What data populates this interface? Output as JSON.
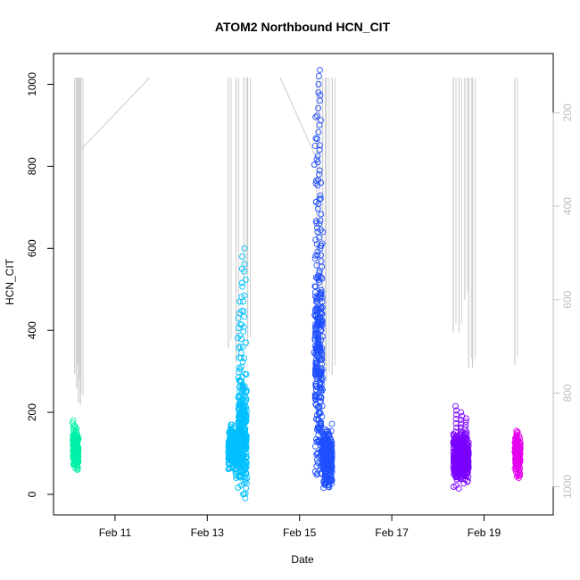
{
  "chart_data": {
    "type": "scatter",
    "title": "ATOM2 Northbound HCN_CIT",
    "xlabel": "Date",
    "ylabel": "HCN_CIT",
    "xlim": [
      "2017-02-09 16:00",
      "2017-02-20 12:00"
    ],
    "ylim": [
      -50,
      1075
    ],
    "x_ticks": [
      {
        "label": "Feb 11",
        "date": "2017-02-11"
      },
      {
        "label": "Feb 13",
        "date": "2017-02-13"
      },
      {
        "label": "Feb 15",
        "date": "2017-02-15"
      },
      {
        "label": "Feb 17",
        "date": "2017-02-17"
      },
      {
        "label": "Feb 19",
        "date": "2017-02-19"
      }
    ],
    "y_ticks": [
      0,
      200,
      400,
      600,
      800,
      1000
    ],
    "y2_ticks": [
      200,
      400,
      600,
      800,
      1000
    ],
    "y2_range_top_to_bottom": [
      125,
      1005
    ],
    "grid": false,
    "legend": "none",
    "series": [
      {
        "color": "#00f0a8",
        "segments": [
          {
            "x_start": "2017-02-10 02:00",
            "x_end": "2017-02-10 05:00",
            "y_min": 55,
            "y_max": 150,
            "y_center": 110,
            "spikes": [
              180,
              165,
              60
            ]
          }
        ]
      },
      {
        "color": "#00bfff",
        "segments": [
          {
            "x_start": "2017-02-13 11:00",
            "x_end": "2017-02-13 16:00",
            "y_min": 60,
            "y_max": 180,
            "y_center": 110,
            "spikes": [
              170,
              40
            ]
          },
          {
            "x_start": "2017-02-13 16:00",
            "x_end": "2017-02-13 20:30",
            "y_min": 0,
            "y_max": 330,
            "y_center": 140,
            "spikes": [
              430,
              470,
              550,
              580,
              600,
              -10
            ]
          }
        ]
      },
      {
        "color": "#1f4fff",
        "segments": [
          {
            "x_start": "2017-02-15 08:00",
            "x_end": "2017-02-15 12:00",
            "y_min": 40,
            "y_max": 700,
            "y_center": 300,
            "spikes": [
              850,
              920,
              980,
              1000,
              1020,
              1035,
              760,
              640
            ]
          },
          {
            "x_start": "2017-02-15 12:00",
            "x_end": "2017-02-15 17:00",
            "y_min": 15,
            "y_max": 180,
            "y_center": 90,
            "spikes": [
              140,
              125
            ]
          }
        ]
      },
      {
        "color": "#7a00ff",
        "segments": [
          {
            "x_start": "2017-02-18 08:00",
            "x_end": "2017-02-18 16:00",
            "y_min": 10,
            "y_max": 150,
            "y_center": 90,
            "spikes": [
              215,
              200,
              185
            ]
          }
        ]
      },
      {
        "color": "#e600f0",
        "segments": [
          {
            "x_start": "2017-02-19 16:00",
            "x_end": "2017-02-19 19:00",
            "y_min": 35,
            "y_max": 155,
            "y_center": 100,
            "spikes": [
              155,
              40
            ]
          }
        ]
      }
    ],
    "secondary_series": {
      "color": "#cccccc",
      "vertical_lines": [
        {
          "x": "2017-02-10 03:00",
          "y2_from": 125,
          "y2_to": 760
        },
        {
          "x": "2017-02-10 04:00",
          "y2_from": 125,
          "y2_to": 790
        },
        {
          "x": "2017-02-10 05:00",
          "y2_from": 125,
          "y2_to": 820
        },
        {
          "x": "2017-02-10 06:00",
          "y2_from": 125,
          "y2_to": 825
        },
        {
          "x": "2017-02-13 11:00",
          "y2_from": 125,
          "y2_to": 705
        },
        {
          "x": "2017-02-13 15:00",
          "y2_from": 125,
          "y2_to": 735
        },
        {
          "x": "2017-02-13 19:00",
          "y2_from": 125,
          "y2_to": 560
        },
        {
          "x": "2017-02-13 21:00",
          "y2_from": 125,
          "y2_to": 700
        },
        {
          "x": "2017-02-15 09:00",
          "y2_from": 125,
          "y2_to": 760
        },
        {
          "x": "2017-02-15 12:00",
          "y2_from": 125,
          "y2_to": 760
        },
        {
          "x": "2017-02-15 14:00",
          "y2_from": 125,
          "y2_to": 775
        },
        {
          "x": "2017-02-15 17:00",
          "y2_from": 125,
          "y2_to": 760
        },
        {
          "x": "2017-02-18 08:00",
          "y2_from": 125,
          "y2_to": 670
        },
        {
          "x": "2017-02-18 11:00",
          "y2_from": 125,
          "y2_to": 670
        },
        {
          "x": "2017-02-18 14:00",
          "y2_from": 125,
          "y2_to": 600
        },
        {
          "x": "2017-02-18 16:00",
          "y2_from": 125,
          "y2_to": 745
        },
        {
          "x": "2017-02-18 18:00",
          "y2_from": 125,
          "y2_to": 745
        },
        {
          "x": "2017-02-19 16:00",
          "y2_from": 125,
          "y2_to": 740
        }
      ],
      "connectors": [
        {
          "x1": "2017-02-10 06:00",
          "y2_1": 280,
          "x2": "2017-02-11 18:00",
          "y2_2": 125
        },
        {
          "x1": "2017-02-14 14:00",
          "y2_1": 125,
          "x2": "2017-02-15 09:00",
          "y2_2": 300
        }
      ]
    }
  }
}
